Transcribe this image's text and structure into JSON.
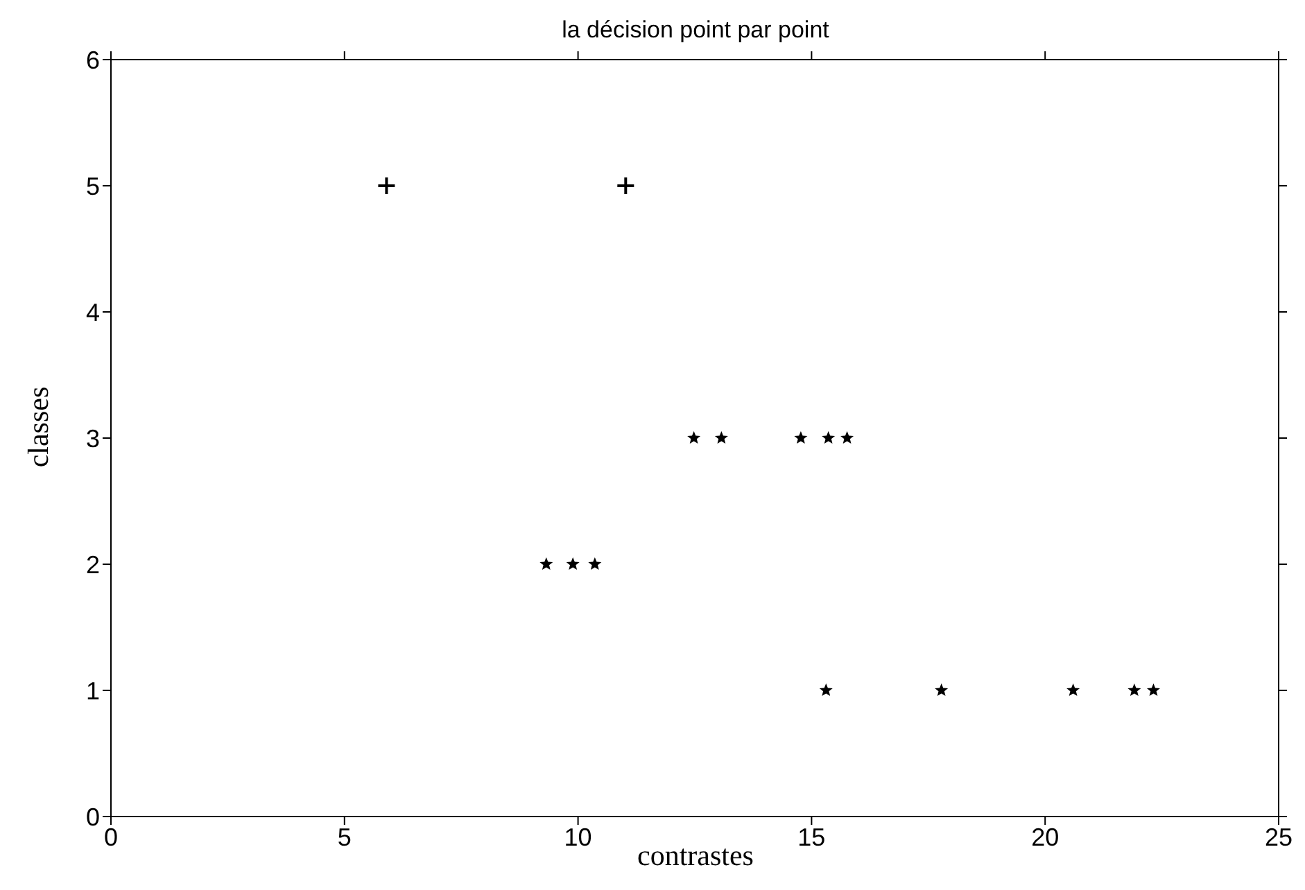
{
  "chart_data": {
    "type": "scatter",
    "title": "la décision point par point",
    "xlabel": "contrastes",
    "ylabel": "classes",
    "xlim": [
      0,
      25
    ],
    "xticks": [
      0,
      5,
      10,
      15,
      20,
      25
    ],
    "ylim": [
      0,
      6
    ],
    "yticks": [
      0,
      1,
      2,
      3,
      4,
      5,
      6
    ],
    "series": [
      {
        "color": "#000000",
        "marker": "cross",
        "x": [
          5.9,
          11.02
        ],
        "values": [
          5,
          5
        ]
      },
      {
        "color": "#000000",
        "marker": "star",
        "x": [
          9.32,
          9.89,
          10.36,
          12.48,
          13.07,
          14.77,
          15.36,
          15.76,
          15.31,
          17.78,
          20.6,
          21.91,
          22.32
        ],
        "values": [
          2,
          2,
          2,
          3,
          3,
          3,
          3,
          3,
          1,
          1,
          1,
          1,
          1
        ]
      }
    ]
  }
}
